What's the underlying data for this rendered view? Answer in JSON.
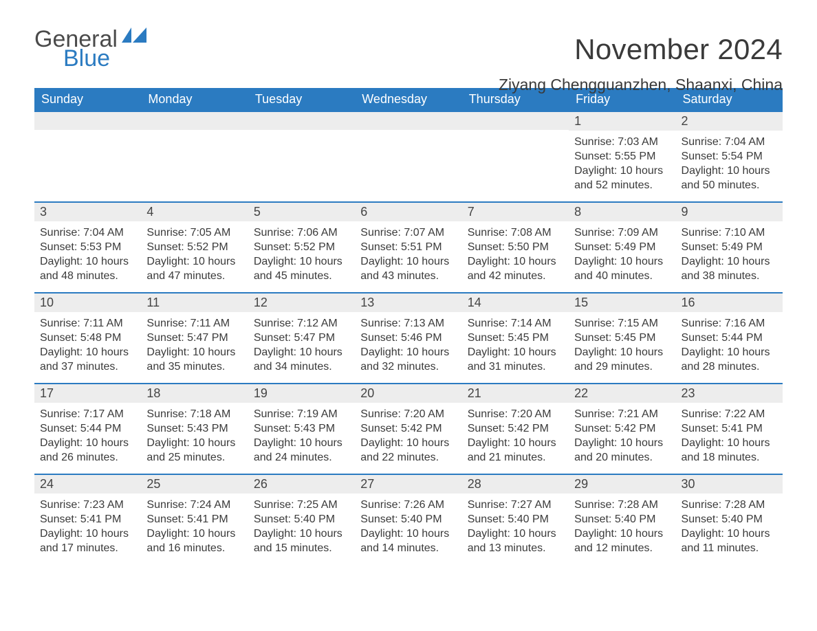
{
  "brand": {
    "word1": "General",
    "word2": "Blue",
    "shape_color": "#2b7bc1",
    "text_color": "#4a4a4a"
  },
  "title": "November 2024",
  "location": "Ziyang Chengguanzhen, Shaanxi, China",
  "colors": {
    "header_bg": "#2b7bc1",
    "header_text": "#ffffff",
    "daynum_bg": "#ededed",
    "day_border": "#2b7bc1",
    "body_text": "#3a3a3a",
    "background": "#ffffff"
  },
  "typography": {
    "title_fontsize": 42,
    "location_fontsize": 23,
    "header_fontsize": 18,
    "cell_fontsize": 16
  },
  "day_headers": [
    "Sunday",
    "Monday",
    "Tuesday",
    "Wednesday",
    "Thursday",
    "Friday",
    "Saturday"
  ],
  "weeks": [
    [
      null,
      null,
      null,
      null,
      null,
      {
        "n": "1",
        "sunrise": "Sunrise: 7:03 AM",
        "sunset": "Sunset: 5:55 PM",
        "dl1": "Daylight: 10 hours",
        "dl2": "and 52 minutes."
      },
      {
        "n": "2",
        "sunrise": "Sunrise: 7:04 AM",
        "sunset": "Sunset: 5:54 PM",
        "dl1": "Daylight: 10 hours",
        "dl2": "and 50 minutes."
      }
    ],
    [
      {
        "n": "3",
        "sunrise": "Sunrise: 7:04 AM",
        "sunset": "Sunset: 5:53 PM",
        "dl1": "Daylight: 10 hours",
        "dl2": "and 48 minutes."
      },
      {
        "n": "4",
        "sunrise": "Sunrise: 7:05 AM",
        "sunset": "Sunset: 5:52 PM",
        "dl1": "Daylight: 10 hours",
        "dl2": "and 47 minutes."
      },
      {
        "n": "5",
        "sunrise": "Sunrise: 7:06 AM",
        "sunset": "Sunset: 5:52 PM",
        "dl1": "Daylight: 10 hours",
        "dl2": "and 45 minutes."
      },
      {
        "n": "6",
        "sunrise": "Sunrise: 7:07 AM",
        "sunset": "Sunset: 5:51 PM",
        "dl1": "Daylight: 10 hours",
        "dl2": "and 43 minutes."
      },
      {
        "n": "7",
        "sunrise": "Sunrise: 7:08 AM",
        "sunset": "Sunset: 5:50 PM",
        "dl1": "Daylight: 10 hours",
        "dl2": "and 42 minutes."
      },
      {
        "n": "8",
        "sunrise": "Sunrise: 7:09 AM",
        "sunset": "Sunset: 5:49 PM",
        "dl1": "Daylight: 10 hours",
        "dl2": "and 40 minutes."
      },
      {
        "n": "9",
        "sunrise": "Sunrise: 7:10 AM",
        "sunset": "Sunset: 5:49 PM",
        "dl1": "Daylight: 10 hours",
        "dl2": "and 38 minutes."
      }
    ],
    [
      {
        "n": "10",
        "sunrise": "Sunrise: 7:11 AM",
        "sunset": "Sunset: 5:48 PM",
        "dl1": "Daylight: 10 hours",
        "dl2": "and 37 minutes."
      },
      {
        "n": "11",
        "sunrise": "Sunrise: 7:11 AM",
        "sunset": "Sunset: 5:47 PM",
        "dl1": "Daylight: 10 hours",
        "dl2": "and 35 minutes."
      },
      {
        "n": "12",
        "sunrise": "Sunrise: 7:12 AM",
        "sunset": "Sunset: 5:47 PM",
        "dl1": "Daylight: 10 hours",
        "dl2": "and 34 minutes."
      },
      {
        "n": "13",
        "sunrise": "Sunrise: 7:13 AM",
        "sunset": "Sunset: 5:46 PM",
        "dl1": "Daylight: 10 hours",
        "dl2": "and 32 minutes."
      },
      {
        "n": "14",
        "sunrise": "Sunrise: 7:14 AM",
        "sunset": "Sunset: 5:45 PM",
        "dl1": "Daylight: 10 hours",
        "dl2": "and 31 minutes."
      },
      {
        "n": "15",
        "sunrise": "Sunrise: 7:15 AM",
        "sunset": "Sunset: 5:45 PM",
        "dl1": "Daylight: 10 hours",
        "dl2": "and 29 minutes."
      },
      {
        "n": "16",
        "sunrise": "Sunrise: 7:16 AM",
        "sunset": "Sunset: 5:44 PM",
        "dl1": "Daylight: 10 hours",
        "dl2": "and 28 minutes."
      }
    ],
    [
      {
        "n": "17",
        "sunrise": "Sunrise: 7:17 AM",
        "sunset": "Sunset: 5:44 PM",
        "dl1": "Daylight: 10 hours",
        "dl2": "and 26 minutes."
      },
      {
        "n": "18",
        "sunrise": "Sunrise: 7:18 AM",
        "sunset": "Sunset: 5:43 PM",
        "dl1": "Daylight: 10 hours",
        "dl2": "and 25 minutes."
      },
      {
        "n": "19",
        "sunrise": "Sunrise: 7:19 AM",
        "sunset": "Sunset: 5:43 PM",
        "dl1": "Daylight: 10 hours",
        "dl2": "and 24 minutes."
      },
      {
        "n": "20",
        "sunrise": "Sunrise: 7:20 AM",
        "sunset": "Sunset: 5:42 PM",
        "dl1": "Daylight: 10 hours",
        "dl2": "and 22 minutes."
      },
      {
        "n": "21",
        "sunrise": "Sunrise: 7:20 AM",
        "sunset": "Sunset: 5:42 PM",
        "dl1": "Daylight: 10 hours",
        "dl2": "and 21 minutes."
      },
      {
        "n": "22",
        "sunrise": "Sunrise: 7:21 AM",
        "sunset": "Sunset: 5:42 PM",
        "dl1": "Daylight: 10 hours",
        "dl2": "and 20 minutes."
      },
      {
        "n": "23",
        "sunrise": "Sunrise: 7:22 AM",
        "sunset": "Sunset: 5:41 PM",
        "dl1": "Daylight: 10 hours",
        "dl2": "and 18 minutes."
      }
    ],
    [
      {
        "n": "24",
        "sunrise": "Sunrise: 7:23 AM",
        "sunset": "Sunset: 5:41 PM",
        "dl1": "Daylight: 10 hours",
        "dl2": "and 17 minutes."
      },
      {
        "n": "25",
        "sunrise": "Sunrise: 7:24 AM",
        "sunset": "Sunset: 5:41 PM",
        "dl1": "Daylight: 10 hours",
        "dl2": "and 16 minutes."
      },
      {
        "n": "26",
        "sunrise": "Sunrise: 7:25 AM",
        "sunset": "Sunset: 5:40 PM",
        "dl1": "Daylight: 10 hours",
        "dl2": "and 15 minutes."
      },
      {
        "n": "27",
        "sunrise": "Sunrise: 7:26 AM",
        "sunset": "Sunset: 5:40 PM",
        "dl1": "Daylight: 10 hours",
        "dl2": "and 14 minutes."
      },
      {
        "n": "28",
        "sunrise": "Sunrise: 7:27 AM",
        "sunset": "Sunset: 5:40 PM",
        "dl1": "Daylight: 10 hours",
        "dl2": "and 13 minutes."
      },
      {
        "n": "29",
        "sunrise": "Sunrise: 7:28 AM",
        "sunset": "Sunset: 5:40 PM",
        "dl1": "Daylight: 10 hours",
        "dl2": "and 12 minutes."
      },
      {
        "n": "30",
        "sunrise": "Sunrise: 7:28 AM",
        "sunset": "Sunset: 5:40 PM",
        "dl1": "Daylight: 10 hours",
        "dl2": "and 11 minutes."
      }
    ]
  ]
}
